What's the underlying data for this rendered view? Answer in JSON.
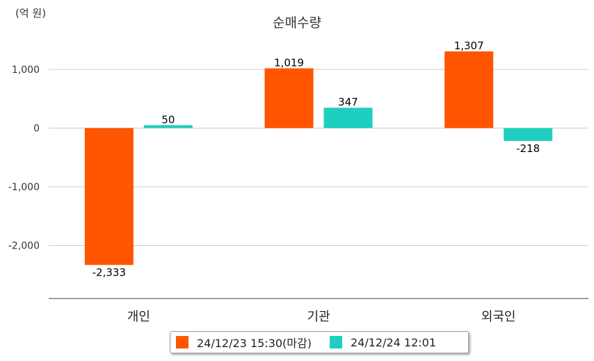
{
  "unit_label": "(억 원)",
  "chart_data": {
    "type": "bar",
    "title": "순매수량",
    "categories": [
      "개인",
      "기관",
      "외국인"
    ],
    "series": [
      {
        "name": "24/12/23 15:30(마감)",
        "color": "#ff5500",
        "values": [
          -2333,
          1019,
          1307
        ],
        "labels": [
          "-2,333",
          "1,019",
          "1,307"
        ]
      },
      {
        "name": "24/12/24 12:01",
        "color": "#1ecfbf",
        "values": [
          50,
          347,
          -218
        ],
        "labels": [
          "50",
          "347",
          "-218"
        ]
      }
    ],
    "yticks": [
      1000,
      0,
      -1000,
      -2000
    ],
    "ytick_labels": [
      "1,000",
      "0",
      "-1,000",
      "-2,000"
    ],
    "ylim": [
      -2900,
      1550
    ],
    "grid": true,
    "legend_position": "bottom"
  }
}
